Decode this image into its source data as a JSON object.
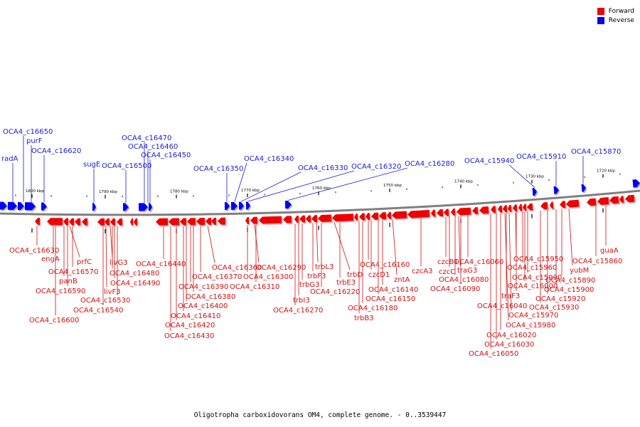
{
  "legend": {
    "forward": {
      "label": "Forward",
      "color": "#ee0000"
    },
    "reverse": {
      "label": "Reverse",
      "color": "#0000ee"
    }
  },
  "caption": "Oligotropha carboxidovorans OM4, complete genome. - 0..3539447",
  "colors": {
    "backbone": "#7f7f7f",
    "forward": "#ee0000",
    "forward_light": "#ffb0b0",
    "reverse": "#0000ee",
    "reverse_light": "#b0b0ff"
  },
  "ticks": [
    "1800 kbp",
    "1790 kbp",
    "1780 kbp",
    "1770 kbp",
    "1760 kbp",
    "1750 kbp",
    "1740 kbp",
    "1730 kbp",
    "1720 kbp"
  ],
  "reverse_labels": [
    "radA",
    "OCA4_c16650",
    "purF",
    "OCA4_c16620",
    "sugE",
    "OCA4_c16500",
    "OCA4_c16470",
    "OCA4_c16460",
    "OCA4_c16450",
    "OCA4_c16350",
    "OCA4_c16340",
    "OCA4_c16330",
    "OCA4_c16320",
    "OCA4_c16280",
    "OCA4_c15940",
    "OCA4_c15910",
    "OCA4_c15870"
  ],
  "forward_labels": [
    "OCA4_c16630",
    "engA",
    "panB",
    "prfC",
    "OCA4_c16570",
    "OCA4_c16590",
    "OCA4_c16600",
    "livG3",
    "OCA4_c16480",
    "OCA4_c16490",
    "livF3",
    "OCA4_c16530",
    "OCA4_c16540",
    "OCA4_c16440",
    "OCA4_c16360",
    "OCA4_c16370",
    "OCA4_c16390",
    "OCA4_c16380",
    "OCA4_c16400",
    "OCA4_c16410",
    "OCA4_c16420",
    "OCA4_c16430",
    "OCA4_c16290",
    "OCA4_c16300",
    "OCA4_c16310",
    "trbL3",
    "trbF3",
    "trbG3",
    "trbI3",
    "OCA4_c16270",
    "trbE3",
    "OCA4_c16220",
    "trbD",
    "OCA4_c16160",
    "czcD1",
    "zntA",
    "OCA4_c16140",
    "OCA4_c16150",
    "OCA4_c16180",
    "trbB3",
    "czcA3",
    "czcB1",
    "czcC",
    "traG3",
    "OCA4_c16060",
    "OCA4_c16080",
    "OCA4_c16090",
    "OCA4_c15950",
    "OCA4_c15960",
    "OCA4_c15990",
    "OCA4_c16000",
    "traF3",
    "OCA4_c16040",
    "OCA4_c16020",
    "OCA4_c16030",
    "OCA4_c16050",
    "OCA4_c15970",
    "OCA4_c15980",
    "yubM",
    "OCA4_c15890",
    "OCA4_c15900",
    "OCA4_c15920",
    "OCA4_c15930",
    "guaA",
    "OCA4_c15860"
  ]
}
